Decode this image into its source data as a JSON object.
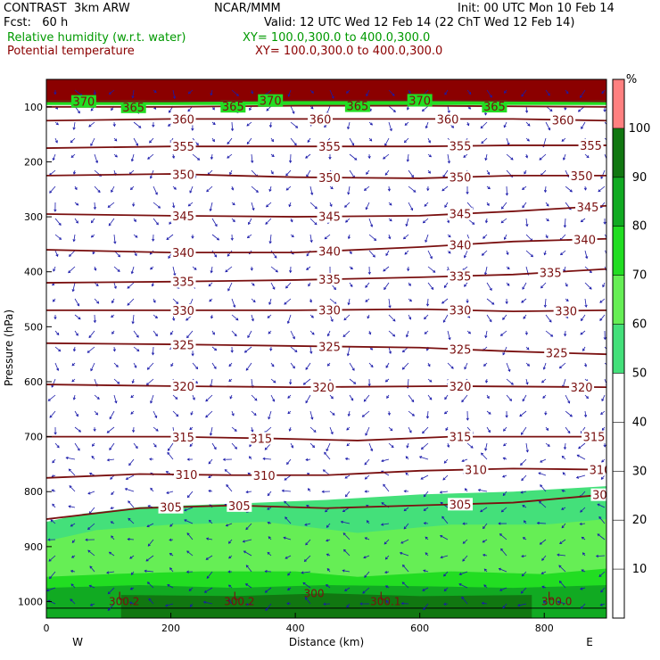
{
  "header": {
    "model": "CONTRAST  3km ARW",
    "producer": "NCAR/MMM",
    "init": "Init: 00 UTC Mon 10 Feb 14",
    "fcst": "Fcst:   60 h",
    "valid": "Valid: 12 UTC Wed 12 Feb 14 (22 ChT Wed 12 Feb 14)",
    "field1": "Relative humidity (w.r.t. water)",
    "field1_xy": "XY= 100.0,300.0 to 400.0,300.0",
    "field2": "Potential temperature",
    "field2_xy": "XY= 100.0,300.0 to 400.0,300.0"
  },
  "colors": {
    "rh_label": "#009900",
    "theta_label": "#8b0000",
    "theta_contour": "#7a1010",
    "wind_vector": "#1a1aaa"
  },
  "chart_data": {
    "type": "heatmap",
    "title": "",
    "xlabel": "Distance (km)",
    "ylabel": "Pressure (hPa)",
    "xlim": [
      0,
      900
    ],
    "ylim": [
      1030,
      50
    ],
    "x_ticks": [
      0,
      200,
      400,
      600,
      800
    ],
    "y_ticks": [
      100,
      200,
      300,
      400,
      500,
      600,
      700,
      800,
      900,
      1000
    ],
    "x_end_labels": [
      "W",
      "E"
    ],
    "colorbar": {
      "unit": "%",
      "levels": [
        10,
        20,
        30,
        40,
        50,
        60,
        70,
        80,
        90,
        100
      ],
      "colors": [
        "#ffffff",
        "#ffffff",
        "#ffffff",
        "#ffffff",
        "#ffffff",
        "#44e07a",
        "#66ee55",
        "#22dd22",
        "#11aa22",
        "#117711",
        "#ff8080"
      ]
    },
    "rh_layers": [
      {
        "level": 50,
        "color": "#44e07a",
        "top": [
          [
            0,
            855
          ],
          [
            60,
            840
          ],
          [
            150,
            828
          ],
          [
            300,
            822
          ],
          [
            450,
            815
          ],
          [
            600,
            805
          ],
          [
            750,
            800
          ],
          [
            900,
            790
          ]
        ]
      },
      {
        "level": 60,
        "color": "#66ee55",
        "top": [
          [
            0,
            890
          ],
          [
            80,
            870
          ],
          [
            200,
            860
          ],
          [
            350,
            855
          ],
          [
            500,
            875
          ],
          [
            650,
            860
          ],
          [
            800,
            860
          ],
          [
            900,
            850
          ]
        ]
      },
      {
        "level": 70,
        "color": "#22dd22",
        "top": [
          [
            0,
            955
          ],
          [
            100,
            950
          ],
          [
            250,
            945
          ],
          [
            400,
            945
          ],
          [
            500,
            955
          ],
          [
            650,
            945
          ],
          [
            800,
            950
          ],
          [
            900,
            940
          ]
        ]
      },
      {
        "level": 80,
        "color": "#11aa22",
        "top": [
          [
            0,
            975
          ],
          [
            150,
            970
          ],
          [
            300,
            975
          ],
          [
            450,
            970
          ],
          [
            600,
            972
          ],
          [
            750,
            975
          ],
          [
            900,
            970
          ]
        ]
      },
      {
        "level": 90,
        "color": "#117711",
        "top": [
          [
            120,
            988
          ],
          [
            300,
            990
          ],
          [
            450,
            985
          ],
          [
            600,
            990
          ],
          [
            780,
            988
          ]
        ]
      }
    ],
    "rh_upper_band": {
      "color_dark": "#8b0000",
      "color_light": "#ff8080",
      "p_top": 50,
      "p_bottom": 95
    },
    "theta_contours": [
      {
        "theta": 305,
        "points": [
          [
            0,
            850
          ],
          [
            150,
            830
          ],
          [
            300,
            825
          ],
          [
            450,
            830
          ],
          [
            600,
            825
          ],
          [
            750,
            820
          ],
          [
            900,
            805
          ]
        ],
        "labels_x": [
          200,
          310,
          665,
          895
        ]
      },
      {
        "theta": 310,
        "points": [
          [
            0,
            775
          ],
          [
            150,
            768
          ],
          [
            300,
            770
          ],
          [
            450,
            770
          ],
          [
            600,
            762
          ],
          [
            750,
            758
          ],
          [
            900,
            760
          ]
        ],
        "labels_x": [
          225,
          350,
          690,
          890
        ]
      },
      {
        "theta": 315,
        "points": [
          [
            0,
            700
          ],
          [
            200,
            700
          ],
          [
            350,
            703
          ],
          [
            500,
            707
          ],
          [
            650,
            700
          ],
          [
            900,
            700
          ]
        ],
        "labels_x": [
          220,
          345,
          665,
          880
        ]
      },
      {
        "theta": 320,
        "points": [
          [
            0,
            605
          ],
          [
            200,
            608
          ],
          [
            400,
            610
          ],
          [
            650,
            608
          ],
          [
            900,
            610
          ]
        ],
        "labels_x": [
          220,
          445,
          665,
          860
        ]
      },
      {
        "theta": 325,
        "points": [
          [
            0,
            530
          ],
          [
            200,
            532
          ],
          [
            400,
            535
          ],
          [
            600,
            538
          ],
          [
            750,
            545
          ],
          [
            900,
            550
          ]
        ],
        "labels_x": [
          220,
          455,
          665,
          820
        ]
      },
      {
        "theta": 330,
        "points": [
          [
            0,
            470
          ],
          [
            200,
            470
          ],
          [
            400,
            470
          ],
          [
            600,
            468
          ],
          [
            750,
            472
          ],
          [
            900,
            470
          ]
        ],
        "labels_x": [
          220,
          455,
          665,
          835
        ]
      },
      {
        "theta": 335,
        "points": [
          [
            0,
            420
          ],
          [
            200,
            418
          ],
          [
            400,
            415
          ],
          [
            600,
            410
          ],
          [
            750,
            405
          ],
          [
            900,
            395
          ]
        ],
        "labels_x": [
          220,
          455,
          665,
          810
        ]
      },
      {
        "theta": 340,
        "points": [
          [
            0,
            360
          ],
          [
            200,
            365
          ],
          [
            400,
            365
          ],
          [
            600,
            355
          ],
          [
            750,
            345
          ],
          [
            900,
            340
          ]
        ],
        "labels_x": [
          220,
          455,
          665,
          865
        ]
      },
      {
        "theta": 345,
        "points": [
          [
            0,
            295
          ],
          [
            200,
            298
          ],
          [
            400,
            300
          ],
          [
            600,
            298
          ],
          [
            750,
            290
          ],
          [
            900,
            280
          ]
        ],
        "labels_x": [
          220,
          455,
          665,
          870
        ]
      },
      {
        "theta": 350,
        "points": [
          [
            0,
            225
          ],
          [
            200,
            222
          ],
          [
            400,
            228
          ],
          [
            600,
            230
          ],
          [
            750,
            225
          ],
          [
            900,
            225
          ]
        ],
        "labels_x": [
          220,
          455,
          665,
          860
        ]
      },
      {
        "theta": 355,
        "points": [
          [
            0,
            175
          ],
          [
            200,
            172
          ],
          [
            400,
            172
          ],
          [
            600,
            172
          ],
          [
            750,
            170
          ],
          [
            900,
            170
          ]
        ],
        "labels_x": [
          220,
          455,
          665,
          875
        ]
      },
      {
        "theta": 360,
        "points": [
          [
            0,
            125
          ],
          [
            200,
            122
          ],
          [
            400,
            122
          ],
          [
            600,
            122
          ],
          [
            750,
            122
          ],
          [
            900,
            125
          ]
        ],
        "labels_x": [
          220,
          440,
          645,
          830
        ]
      },
      {
        "theta": 365,
        "points": [
          [
            0,
            100
          ],
          [
            200,
            100
          ],
          [
            400,
            98
          ],
          [
            600,
            98
          ],
          [
            900,
            100
          ]
        ],
        "labels_x": [
          140,
          300,
          500,
          720
        ]
      },
      {
        "theta": 370,
        "points": [
          [
            0,
            90
          ],
          [
            200,
            90
          ],
          [
            400,
            88
          ],
          [
            600,
            88
          ],
          [
            900,
            90
          ]
        ],
        "labels_x": [
          60,
          360,
          600
        ]
      }
    ],
    "surface_labels": [
      {
        "text": "L",
        "x": 120,
        "p": 990
      },
      {
        "text": "300.2",
        "x": 125,
        "p": 1000
      },
      {
        "text": "L",
        "x": 305,
        "p": 990
      },
      {
        "text": "300.2",
        "x": 310,
        "p": 1000
      },
      {
        "text": "300",
        "x": 430,
        "p": 985
      },
      {
        "text": "L",
        "x": 540,
        "p": 990
      },
      {
        "text": "300.1",
        "x": 545,
        "p": 1000
      },
      {
        "text": "L",
        "x": 810,
        "p": 990
      },
      {
        "text": "300.0",
        "x": 820,
        "p": 1000
      }
    ]
  }
}
